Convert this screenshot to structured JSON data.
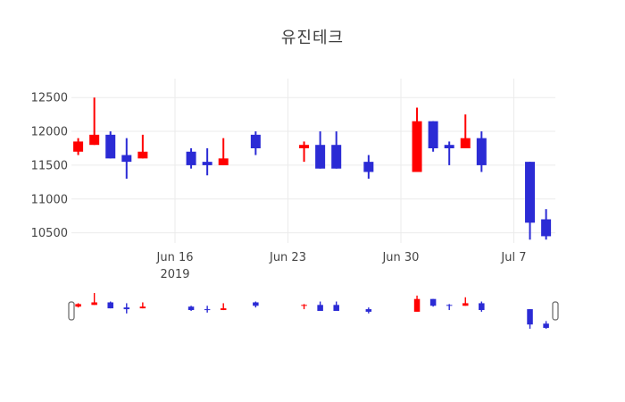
{
  "title": "유진테크",
  "colors": {
    "increasing": "#FF0000",
    "decreasing": "#2B2BD5",
    "gridline": "#EBEBEB",
    "tick_text": "#444444",
    "title_text": "#3D3D3D",
    "background": "#FFFFFF",
    "slider_handle_stroke": "#666666",
    "slider_handle_fill": "#FFFFFF"
  },
  "y_axis": {
    "tick_labels": [
      "10500",
      "11000",
      "11500",
      "12000",
      "12500"
    ],
    "tick_values": [
      10500,
      11000,
      11500,
      12000,
      12500
    ]
  },
  "x_axis": {
    "ticks": [
      {
        "label": "Jun 16",
        "year": "2019",
        "date": "2019-06-16"
      },
      {
        "label": "Jun 23",
        "date": "2019-06-23"
      },
      {
        "label": "Jun 30",
        "date": "2019-06-30"
      },
      {
        "label": "Jul 7",
        "date": "2019-07-07"
      }
    ]
  },
  "chart_data": {
    "type": "candlestick",
    "title": "유진테크",
    "x": [
      "2019-06-10",
      "2019-06-11",
      "2019-06-12",
      "2019-06-13",
      "2019-06-14",
      "2019-06-17",
      "2019-06-18",
      "2019-06-19",
      "2019-06-21",
      "2019-06-24",
      "2019-06-25",
      "2019-06-26",
      "2019-06-28",
      "2019-07-01",
      "2019-07-02",
      "2019-07-03",
      "2019-07-04",
      "2019-07-05",
      "2019-07-08",
      "2019-07-09"
    ],
    "open": [
      11700,
      11800,
      11950,
      11650,
      11600,
      11700,
      11550,
      11500,
      11950,
      11750,
      11800,
      11800,
      11550,
      11400,
      12150,
      11800,
      11750,
      11900,
      11550,
      10700
    ],
    "high": [
      11900,
      12500,
      12000,
      11900,
      11950,
      11750,
      11750,
      11900,
      12000,
      11850,
      12000,
      12000,
      11650,
      12350,
      12150,
      11850,
      12250,
      12000,
      11550,
      10850
    ],
    "low": [
      11650,
      11800,
      11600,
      11300,
      11600,
      11450,
      11350,
      11500,
      11650,
      11550,
      11450,
      11450,
      11300,
      11400,
      11700,
      11500,
      11750,
      11400,
      10400,
      10400
    ],
    "close": [
      11850,
      11950,
      11600,
      11550,
      11700,
      11500,
      11500,
      11600,
      11750,
      11800,
      11450,
      11450,
      11400,
      12150,
      11750,
      11750,
      11900,
      11500,
      10650,
      10450
    ],
    "increasing_color": "#FF0000",
    "decreasing_color": "#2B2BD5",
    "xlabel": "",
    "ylabel": "",
    "ylim": [
      10350,
      12780
    ],
    "grid": true,
    "legend": false,
    "rangeslider": {
      "visible": true,
      "ylim": [
        10400,
        12500
      ]
    }
  }
}
